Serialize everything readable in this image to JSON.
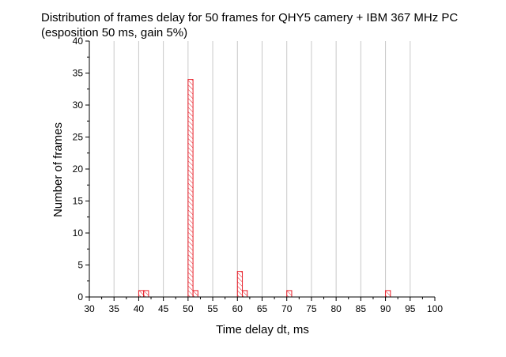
{
  "chart_data": {
    "type": "bar",
    "title": "Distribution of frames delay for 50 frames for QHY5 camery + IBM 367 MHz PC",
    "subtitle": "(esposition 50 ms, gain 5%)",
    "xlabel": "Time delay dt, ms",
    "ylabel": "Number of frames",
    "xlim": [
      30,
      100
    ],
    "ylim": [
      0,
      40
    ],
    "x_ticks": [
      30,
      35,
      40,
      45,
      50,
      55,
      60,
      65,
      70,
      75,
      80,
      85,
      90,
      95,
      100
    ],
    "y_ticks": [
      0,
      5,
      10,
      15,
      20,
      25,
      30,
      35,
      40
    ],
    "grid": true,
    "bar_width": 1,
    "bar_style": "red hatched outline",
    "bars": [
      {
        "x": 40,
        "value": 1
      },
      {
        "x": 41,
        "value": 1
      },
      {
        "x": 50,
        "value": 34
      },
      {
        "x": 51,
        "value": 1
      },
      {
        "x": 60,
        "value": 4
      },
      {
        "x": 61,
        "value": 1
      },
      {
        "x": 70,
        "value": 1
      },
      {
        "x": 90,
        "value": 1
      }
    ],
    "colors": {
      "bar_stroke": "#e8202a",
      "grid": "#c8c8c8",
      "axis": "#000000"
    }
  }
}
